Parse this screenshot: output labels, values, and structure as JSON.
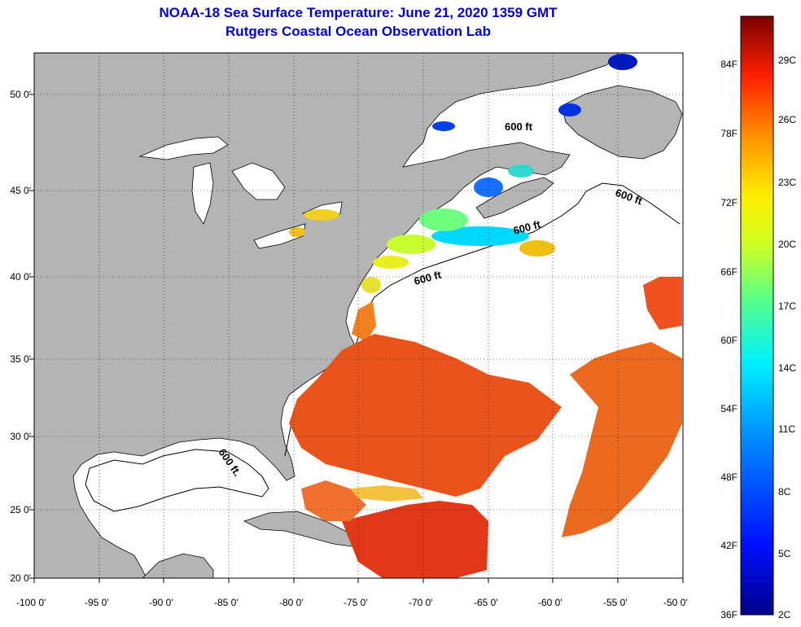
{
  "title_line1": "NOAA-18 Sea Surface Temperature:  June 21, 2020 1359 GMT",
  "title_line2": "Rutgers Coastal Ocean Observation Lab",
  "y_ticks": [
    "50 0'",
    "45 0'",
    "40 0'",
    "35 0'",
    "30 0'",
    "25 0'",
    "20 0'"
  ],
  "x_ticks": [
    "-100 0'",
    "-95 0'",
    "-90 0'",
    "-85 0'",
    "-80 0'",
    "-75 0'",
    "-70 0'",
    "-65 0'",
    "-60 0'",
    "-55 0'",
    "-50 0'"
  ],
  "isobath_labels": [
    "600 ft",
    "600 ft",
    "600 ft",
    "600 ft",
    "600 ft."
  ],
  "colorbar": {
    "fahrenheit": [
      "84F",
      "78F",
      "72F",
      "66F",
      "60F",
      "54F",
      "48F",
      "42F",
      "36F"
    ],
    "celsius": [
      "29C",
      "26C",
      "23C",
      "20C",
      "17C",
      "14C",
      "11C",
      "8C",
      "5C",
      "2C"
    ]
  },
  "colors": {
    "land": "#b4b4b4",
    "title": "#0000c8",
    "warm": "#e8401c",
    "cold": "#0018c0"
  }
}
